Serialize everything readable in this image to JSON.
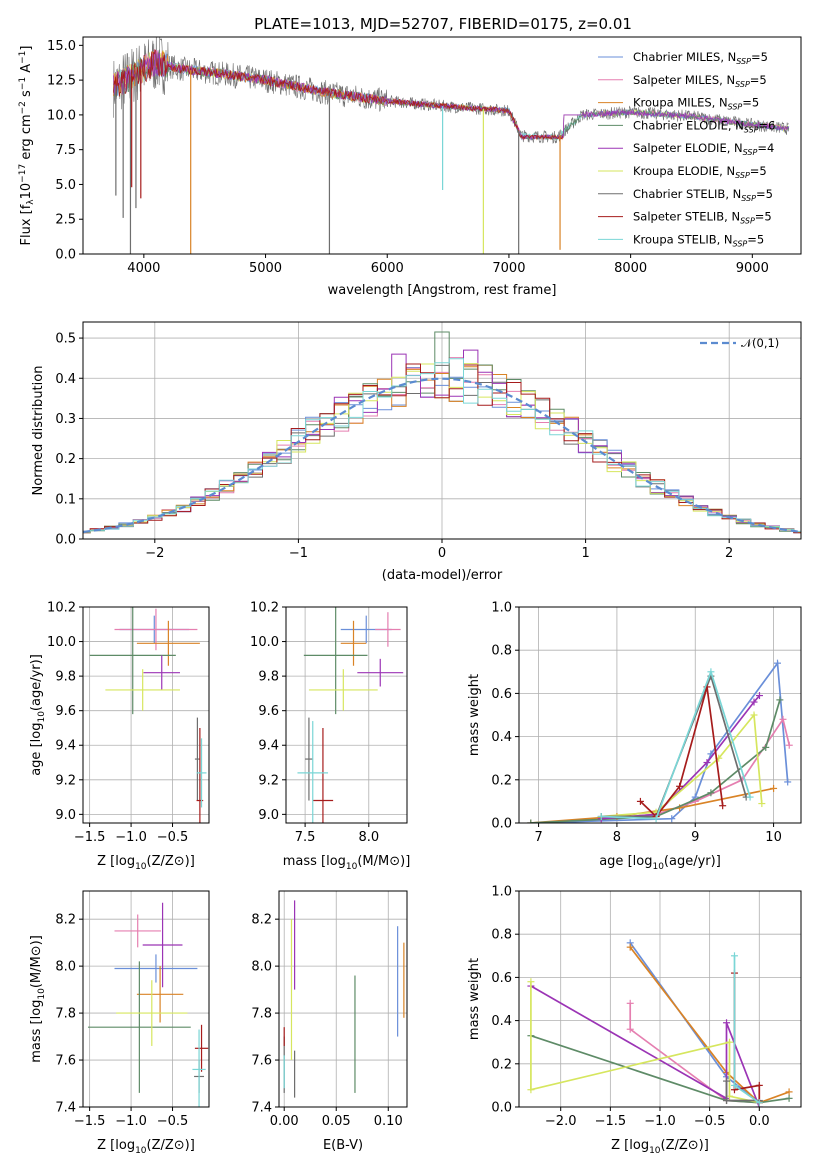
{
  "figure": {
    "title": "PLATE=1013, MJD=52707, FIBERID=0175, z=0.01",
    "colors": [
      "#6a8fd9",
      "#e57fb0",
      "#d98326",
      "#5e8b67",
      "#9b34b5",
      "#d6e65e",
      "#6e6e6e",
      "#a61c1c",
      "#7ad6d6"
    ]
  },
  "chart_data": [
    {
      "type": "line",
      "id": "spectrum",
      "xlabel": "wavelength [Angstrom, rest frame]",
      "ylabel": "Flux [f",
      "xlim": [
        3500,
        9400
      ],
      "ylim": [
        0,
        15.6
      ],
      "xticks": [
        4000,
        5000,
        6000,
        7000,
        8000,
        9000
      ],
      "yticks": [
        0.0,
        2.5,
        5.0,
        7.5,
        10.0,
        12.5,
        15.0
      ],
      "legend_position": "top-right",
      "legend": [
        {
          "prefix": "Chabrier MILES, N",
          "sub": "SSP",
          "suffix": "=5"
        },
        {
          "prefix": "Salpeter MILES, N",
          "sub": "SSP",
          "suffix": "=5"
        },
        {
          "prefix": "Kroupa MILES, N",
          "sub": "SSP",
          "suffix": "=5"
        },
        {
          "prefix": "Chabrier ELODIE, N",
          "sub": "SSP",
          "suffix": "=6"
        },
        {
          "prefix": "Salpeter ELODIE, N",
          "sub": "SSP",
          "suffix": "=4"
        },
        {
          "prefix": "Kroupa ELODIE, N",
          "sub": "SSP",
          "suffix": "=5"
        },
        {
          "prefix": "Chabrier STELIB, N",
          "sub": "SSP",
          "suffix": "=5"
        },
        {
          "prefix": "Salpeter STELIB, N",
          "sub": "SSP",
          "suffix": "=5"
        },
        {
          "prefix": "Kroupa STELIB, N",
          "sub": "SSP",
          "suffix": "=5"
        }
      ],
      "continuum": [
        [
          3750,
          12.0
        ],
        [
          3900,
          12.8
        ],
        [
          4100,
          13.8
        ],
        [
          4300,
          13.3
        ],
        [
          4600,
          13.0
        ],
        [
          5000,
          12.5
        ],
        [
          5500,
          11.6
        ],
        [
          6000,
          11.0
        ],
        [
          6500,
          10.6
        ],
        [
          7000,
          10.3
        ],
        [
          7100,
          8.5
        ],
        [
          7400,
          8.4
        ],
        [
          7600,
          10.0
        ],
        [
          8000,
          10.2
        ],
        [
          8500,
          9.9
        ],
        [
          9000,
          9.3
        ],
        [
          9300,
          9.0
        ]
      ],
      "dips": [
        {
          "x": 3770,
          "y": 4.2,
          "series": 6
        },
        {
          "x": 3830,
          "y": 2.6,
          "series": 6
        },
        {
          "x": 3890,
          "y": 0.0,
          "series": 6
        },
        {
          "x": 3900,
          "y": 4.8,
          "series": 7
        },
        {
          "x": 3935,
          "y": 3.3,
          "series": 6
        },
        {
          "x": 3975,
          "y": 4.0,
          "series": 7
        },
        {
          "x": 4385,
          "y": 0.0,
          "series": 2
        },
        {
          "x": 5525,
          "y": 0.0,
          "series": 6
        },
        {
          "x": 6455,
          "y": 4.6,
          "series": 8
        },
        {
          "x": 6790,
          "y": 0.0,
          "series": 5
        },
        {
          "x": 7080,
          "y": 0.0,
          "series": 6
        },
        {
          "x": 7420,
          "y": 0.3,
          "series": 2
        }
      ]
    },
    {
      "type": "bar",
      "id": "residuals",
      "xlabel": "(data-model)/error",
      "ylabel": "Normed distribution",
      "xlim": [
        -2.5,
        2.5
      ],
      "ylim": [
        0,
        0.54
      ],
      "xticks": [
        -2,
        -1,
        0,
        1,
        2
      ],
      "xticklabels": [
        "−2",
        "−1",
        "0",
        "1",
        "2"
      ],
      "yticks": [
        0.0,
        0.1,
        0.2,
        0.3,
        0.4,
        0.5
      ],
      "bin_width": 0.1,
      "reference": {
        "label": "𝒩(0,1)",
        "mean": 0,
        "sigma": 1
      },
      "peak_bins": [
        {
          "x": 0.0,
          "y": 0.515,
          "series": 3
        },
        {
          "x": -0.25,
          "y": 0.46,
          "series": 4
        },
        {
          "x": 0.25,
          "y": 0.47,
          "series": 4
        }
      ]
    },
    {
      "type": "scatter",
      "id": "age-vs-Z",
      "xlabel": "Z [log",
      "ylabel": "age  [log",
      "xlim": [
        -1.58,
        -0.06
      ],
      "ylim": [
        8.95,
        10.2
      ],
      "xticks": [
        -1.5,
        -1.0,
        -0.5
      ],
      "xticklabels": [
        "−1.5",
        "−1.0",
        "−0.5"
      ],
      "yticks": [
        9.0,
        9.2,
        9.4,
        9.6,
        9.8,
        10.0,
        10.2
      ],
      "points": [
        {
          "s": 0,
          "x": -0.72,
          "y": 10.07,
          "dx": 0.42,
          "dy": 0.08
        },
        {
          "s": 1,
          "x": -0.7,
          "y": 10.07,
          "dx": 0.5,
          "dy": 0.12
        },
        {
          "s": 2,
          "x": -0.55,
          "y": 9.99,
          "dx": 0.38,
          "dy": 0.13
        },
        {
          "s": 3,
          "x": -0.98,
          "y": 9.92,
          "dx": 0.52,
          "dy": 0.34
        },
        {
          "s": 4,
          "x": -0.63,
          "y": 9.82,
          "dx": 0.22,
          "dy": 0.1
        },
        {
          "s": 5,
          "x": -0.86,
          "y": 9.72,
          "dx": 0.45,
          "dy": 0.12
        },
        {
          "s": 6,
          "x": -0.2,
          "y": 9.32,
          "dx": 0.03,
          "dy": 0.24
        },
        {
          "s": 7,
          "x": -0.17,
          "y": 9.08,
          "dx": 0.04,
          "dy": 0.42
        },
        {
          "s": 8,
          "x": -0.15,
          "y": 9.24,
          "dx": 0.06,
          "dy": 0.2
        }
      ]
    },
    {
      "type": "scatter",
      "id": "age-vs-mass",
      "xlabel": "mass [log",
      "xlim": [
        7.35,
        8.3
      ],
      "ylim": [
        8.95,
        10.2
      ],
      "xticks": [
        7.5,
        8.0
      ],
      "xticklabels": [
        "7.5",
        "8.0"
      ],
      "yticks": [
        9.0,
        9.2,
        9.4,
        9.6,
        9.8,
        10.0,
        10.2
      ],
      "points": [
        {
          "s": 0,
          "x": 7.98,
          "y": 10.07,
          "dx": 0.2,
          "dy": 0.08
        },
        {
          "s": 1,
          "x": 8.15,
          "y": 10.07,
          "dx": 0.1,
          "dy": 0.1
        },
        {
          "s": 2,
          "x": 7.88,
          "y": 9.99,
          "dx": 0.1,
          "dy": 0.13
        },
        {
          "s": 3,
          "x": 7.74,
          "y": 9.92,
          "dx": 0.25,
          "dy": 0.34
        },
        {
          "s": 4,
          "x": 8.09,
          "y": 9.82,
          "dx": 0.18,
          "dy": 0.08
        },
        {
          "s": 5,
          "x": 7.8,
          "y": 9.72,
          "dx": 0.27,
          "dy": 0.12
        },
        {
          "s": 6,
          "x": 7.53,
          "y": 9.32,
          "dx": 0.03,
          "dy": 0.24
        },
        {
          "s": 7,
          "x": 7.64,
          "y": 9.08,
          "dx": 0.08,
          "dy": 0.42
        },
        {
          "s": 8,
          "x": 7.56,
          "y": 9.24,
          "dx": 0.12,
          "dy": 0.3
        }
      ]
    },
    {
      "type": "line",
      "id": "massweight-vs-age",
      "xlabel": "age  [log",
      "ylabel": "mass weight",
      "xlim": [
        6.75,
        10.35
      ],
      "ylim": [
        0,
        1.0
      ],
      "xticks": [
        7,
        8,
        9,
        10
      ],
      "xticklabels": [
        "7",
        "8",
        "9",
        "10"
      ],
      "yticks": [
        0.0,
        0.2,
        0.4,
        0.6,
        0.8,
        1.0
      ],
      "series": [
        {
          "s": 0,
          "points": [
            [
              6.9,
              0.0
            ],
            [
              8.7,
              0.02
            ],
            [
              9.0,
              0.12
            ],
            [
              9.2,
              0.32
            ],
            [
              10.05,
              0.74
            ],
            [
              10.18,
              0.19
            ]
          ]
        },
        {
          "s": 1,
          "points": [
            [
              7.8,
              0.02
            ],
            [
              8.5,
              0.04
            ],
            [
              9.0,
              0.1
            ],
            [
              9.6,
              0.2
            ],
            [
              10.12,
              0.48
            ],
            [
              10.2,
              0.36
            ]
          ]
        },
        {
          "s": 2,
          "points": [
            [
              6.9,
              0.0
            ],
            [
              8.0,
              0.03
            ],
            [
              8.8,
              0.07
            ],
            [
              10.0,
              0.16
            ]
          ]
        },
        {
          "s": 3,
          "points": [
            [
              6.9,
              0.0
            ],
            [
              8.5,
              0.03
            ],
            [
              9.2,
              0.14
            ],
            [
              9.9,
              0.35
            ],
            [
              10.08,
              0.57
            ]
          ]
        },
        {
          "s": 4,
          "points": [
            [
              7.8,
              0.02
            ],
            [
              8.5,
              0.04
            ],
            [
              9.15,
              0.28
            ],
            [
              9.75,
              0.56
            ],
            [
              9.82,
              0.59
            ]
          ]
        },
        {
          "s": 5,
          "points": [
            [
              7.8,
              0.03
            ],
            [
              8.5,
              0.05
            ],
            [
              9.3,
              0.3
            ],
            [
              9.75,
              0.5
            ],
            [
              9.85,
              0.09
            ]
          ]
        },
        {
          "s": 6,
          "points": [
            [
              7.8,
              0.03
            ],
            [
              8.5,
              0.03
            ],
            [
              9.2,
              0.68
            ],
            [
              9.65,
              0.12
            ]
          ]
        },
        {
          "s": 7,
          "points": [
            [
              8.3,
              0.1
            ],
            [
              8.5,
              0.03
            ],
            [
              8.8,
              0.17
            ],
            [
              9.15,
              0.63
            ],
            [
              9.35,
              0.08
            ]
          ]
        },
        {
          "s": 8,
          "points": [
            [
              7.8,
              0.03
            ],
            [
              8.5,
              0.02
            ],
            [
              9.2,
              0.7
            ],
            [
              9.7,
              0.12
            ]
          ]
        }
      ]
    },
    {
      "type": "scatter",
      "id": "mass-vs-Z",
      "xlabel": "Z [log",
      "ylabel": "mass [log",
      "xlim": [
        -1.58,
        -0.06
      ],
      "ylim": [
        7.4,
        8.32
      ],
      "xticks": [
        -1.5,
        -1.0,
        -0.5
      ],
      "xticklabels": [
        "−1.5",
        "−1.0",
        "−0.5"
      ],
      "yticks": [
        7.4,
        7.6,
        7.8,
        8.0,
        8.2
      ],
      "points": [
        {
          "s": 0,
          "x": -0.7,
          "y": 7.99,
          "dx": 0.5,
          "dy": 0.06
        },
        {
          "s": 1,
          "x": -0.92,
          "y": 8.15,
          "dx": 0.28,
          "dy": 0.07
        },
        {
          "s": 2,
          "x": -0.65,
          "y": 7.88,
          "dx": 0.28,
          "dy": 0.12
        },
        {
          "s": 3,
          "x": -0.9,
          "y": 7.74,
          "dx": 0.62,
          "dy": 0.28
        },
        {
          "s": 4,
          "x": -0.62,
          "y": 8.09,
          "dx": 0.24,
          "dy": 0.18
        },
        {
          "s": 5,
          "x": -0.75,
          "y": 7.8,
          "dx": 0.43,
          "dy": 0.14
        },
        {
          "s": 6,
          "x": -0.18,
          "y": 7.53,
          "dx": 0.06,
          "dy": 0.07
        },
        {
          "s": 7,
          "x": -0.15,
          "y": 7.65,
          "dx": 0.08,
          "dy": 0.1
        },
        {
          "s": 8,
          "x": -0.18,
          "y": 7.56,
          "dx": 0.08,
          "dy": 0.17
        }
      ]
    },
    {
      "type": "scatter",
      "id": "mass-vs-EBV",
      "xlabel": "E(B-V)",
      "xlim": [
        -0.005,
        0.118
      ],
      "ylim": [
        7.4,
        8.32
      ],
      "xticks": [
        0.0,
        0.05,
        0.1
      ],
      "xticklabels": [
        "0.00",
        "0.05",
        "0.10"
      ],
      "yticks": [
        7.4,
        7.6,
        7.8,
        8.0,
        8.2
      ],
      "segments": [
        {
          "s": 6,
          "x": 0.0,
          "y1": 7.46,
          "y2": 7.7
        },
        {
          "s": 7,
          "x": 0.0,
          "y1": 7.66,
          "y2": 7.74
        },
        {
          "s": 8,
          "x": 0.0,
          "y1": 7.48,
          "y2": 7.62
        },
        {
          "s": 5,
          "x": 0.007,
          "y1": 7.6,
          "y2": 8.2
        },
        {
          "s": 4,
          "x": 0.01,
          "y1": 7.9,
          "y2": 8.28
        },
        {
          "s": 6,
          "x": 0.01,
          "y1": 7.44,
          "y2": 7.64
        },
        {
          "s": 3,
          "x": 0.068,
          "y1": 7.46,
          "y2": 7.96
        },
        {
          "s": 0,
          "x": 0.109,
          "y1": 7.7,
          "y2": 8.17
        },
        {
          "s": 2,
          "x": 0.115,
          "y1": 7.78,
          "y2": 8.1
        }
      ]
    },
    {
      "type": "line",
      "id": "massweight-vs-Z",
      "xlabel": "Z [log",
      "ylabel": "mass weight",
      "xlim": [
        -2.42,
        0.42
      ],
      "ylim": [
        0,
        1.0
      ],
      "xticks": [
        -2.0,
        -1.5,
        -1.0,
        -0.5,
        0.0
      ],
      "xticklabels": [
        "−2.0",
        "−1.5",
        "−1.0",
        "−0.5",
        "0.0"
      ],
      "yticks": [
        0.0,
        0.2,
        0.4,
        0.6,
        0.8,
        1.0
      ],
      "series": [
        {
          "s": 0,
          "points": [
            [
              -1.3,
              0.76
            ],
            [
              -0.33,
              0.14
            ],
            [
              0.0,
              0.02
            ]
          ]
        },
        {
          "s": 1,
          "points": [
            [
              -1.3,
              0.48
            ],
            [
              -1.3,
              0.36
            ],
            [
              -0.33,
              0.03
            ],
            [
              0.0,
              0.02
            ]
          ]
        },
        {
          "s": 2,
          "points": [
            [
              -1.3,
              0.74
            ],
            [
              -0.33,
              0.16
            ],
            [
              0.0,
              0.02
            ],
            [
              0.3,
              0.07
            ]
          ]
        },
        {
          "s": 3,
          "points": [
            [
              -2.3,
              0.33
            ],
            [
              -0.33,
              0.03
            ],
            [
              0.0,
              0.02
            ],
            [
              0.3,
              0.04
            ]
          ]
        },
        {
          "s": 4,
          "points": [
            [
              -2.3,
              0.56
            ],
            [
              -0.33,
              0.04
            ],
            [
              -0.33,
              0.39
            ],
            [
              0.0,
              0.0
            ]
          ]
        },
        {
          "s": 5,
          "points": [
            [
              -2.3,
              0.58
            ],
            [
              -2.3,
              0.08
            ],
            [
              -0.3,
              0.3
            ],
            [
              -0.3,
              0.05
            ],
            [
              0.0,
              0.02
            ]
          ]
        },
        {
          "s": 6,
          "points": [
            [
              -0.33,
              0.12
            ],
            [
              -0.33,
              0.03
            ],
            [
              0.0,
              0.03
            ]
          ]
        },
        {
          "s": 7,
          "points": [
            [
              -0.25,
              0.62
            ],
            [
              -0.25,
              0.08
            ],
            [
              0.0,
              0.1
            ],
            [
              0.0,
              0.02
            ]
          ]
        },
        {
          "s": 8,
          "points": [
            [
              -0.25,
              0.7
            ],
            [
              -0.25,
              0.1
            ],
            [
              0.0,
              0.02
            ]
          ]
        }
      ]
    }
  ]
}
